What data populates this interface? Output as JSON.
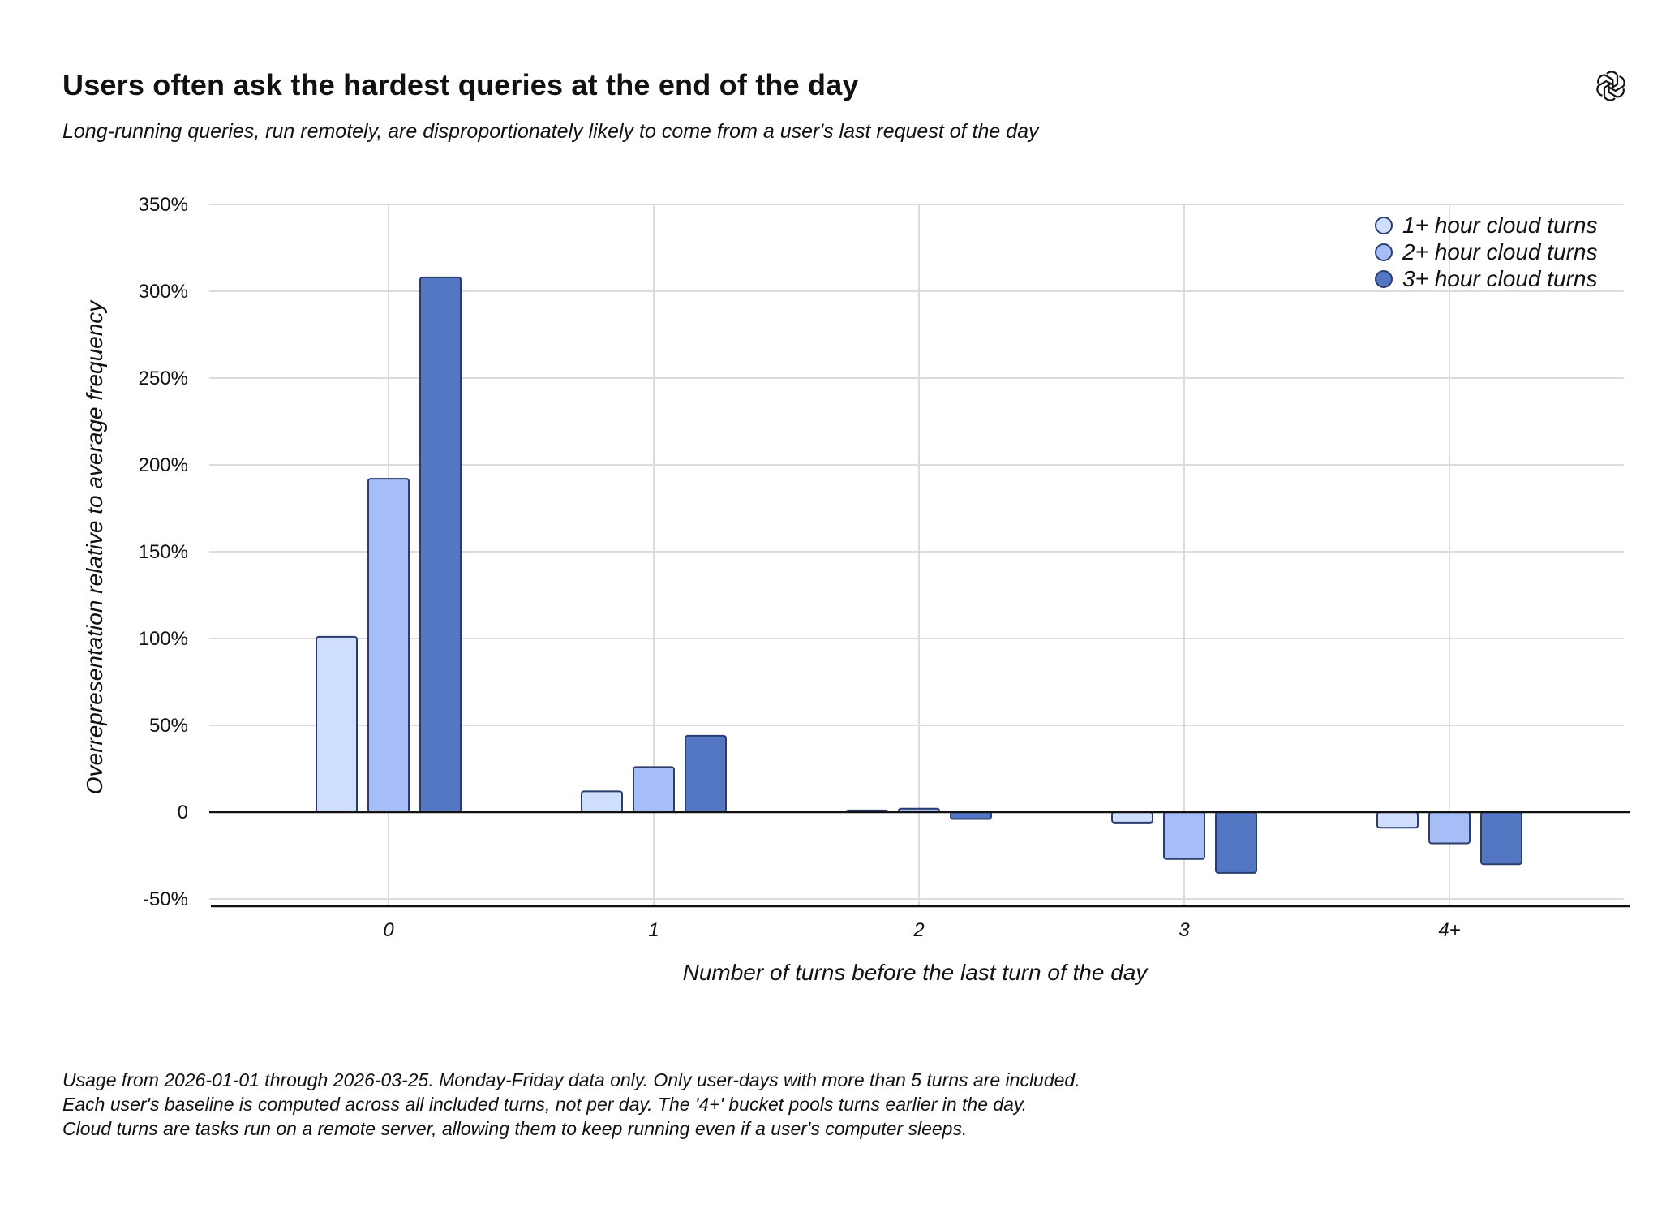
{
  "chart_data": {
    "type": "bar",
    "title": "Users often ask the hardest queries at the end of the day",
    "subtitle": "Long-running queries, run remotely, are disproportionately likely to come from a user's last request of the day",
    "xlabel": "Number of turns before the last turn of the day",
    "ylabel": "Overrepresentation relative to average frequency",
    "categories": [
      "0",
      "1",
      "2",
      "3",
      "4+"
    ],
    "series": [
      {
        "name": "1+ hour cloud turns",
        "color": "#cfdefe",
        "values": [
          101,
          12,
          1,
          -6,
          -9
        ]
      },
      {
        "name": "2+ hour cloud turns",
        "color": "#a6bdf8",
        "values": [
          192,
          26,
          2,
          -27,
          -18
        ]
      },
      {
        "name": "3+ hour cloud turns",
        "color": "#5477c4",
        "values": [
          308,
          44,
          -4,
          -35,
          -30
        ]
      }
    ],
    "ylim": [
      -50,
      350
    ],
    "yticks": [
      -50,
      0,
      50,
      100,
      150,
      200,
      250,
      300,
      350
    ],
    "ytick_labels": [
      "-50%",
      "0",
      "50%",
      "100%",
      "150%",
      "200%",
      "250%",
      "300%",
      "350%"
    ],
    "grid": true,
    "legend_position": "top-right"
  },
  "footnotes": [
    "Usage from 2026-01-01 through 2026-03-25. Monday-Friday data only. Only user-days with more than 5 turns are included.",
    "Each user's baseline is computed across all included turns, not per day. The '4+' bucket pools turns earlier in the day.",
    "Cloud turns are tasks run on a remote server, allowing them to keep running even if a user's computer sleeps."
  ],
  "logo": {
    "icon": "openai-logo-icon"
  },
  "colors": {
    "bar_stroke": "#2a3d6e",
    "grid": "#dcdcdc",
    "axis": "#111111"
  }
}
